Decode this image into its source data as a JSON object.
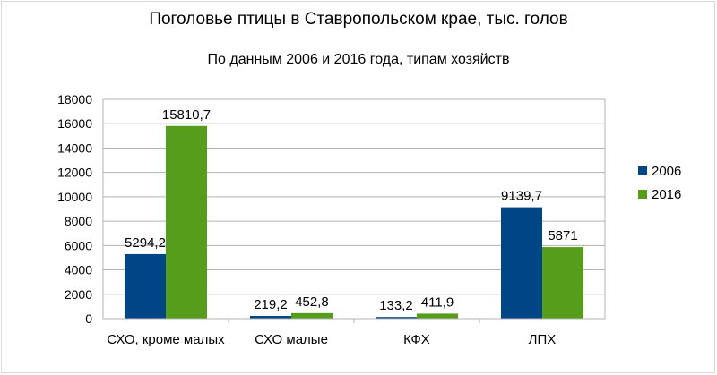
{
  "chart_data": {
    "type": "bar",
    "title": "Поголовье птицы в Ставропольском крае, тыс. голов",
    "subtitle": "По данным 2006 и 2016 года, типам хозяйств",
    "categories": [
      "СХО, кроме малых",
      "СХО малые",
      "КФХ",
      "ЛПХ"
    ],
    "series": [
      {
        "name": "2006",
        "color": "#004586",
        "values": [
          5294.2,
          219.2,
          133.2,
          9139.7
        ],
        "labels": [
          "5294,2",
          "219,2",
          "133,2",
          "9139,7"
        ]
      },
      {
        "name": "2016",
        "color": "#579d1c",
        "values": [
          15810.7,
          452.8,
          411.9,
          5871
        ],
        "labels": [
          "15810,7",
          "452,8",
          "411,9",
          "5871"
        ]
      }
    ],
    "ylim": [
      0,
      18000
    ],
    "yticks": [
      0,
      2000,
      4000,
      6000,
      8000,
      10000,
      12000,
      14000,
      16000,
      18000
    ],
    "grid": true,
    "legend_position": "right"
  }
}
